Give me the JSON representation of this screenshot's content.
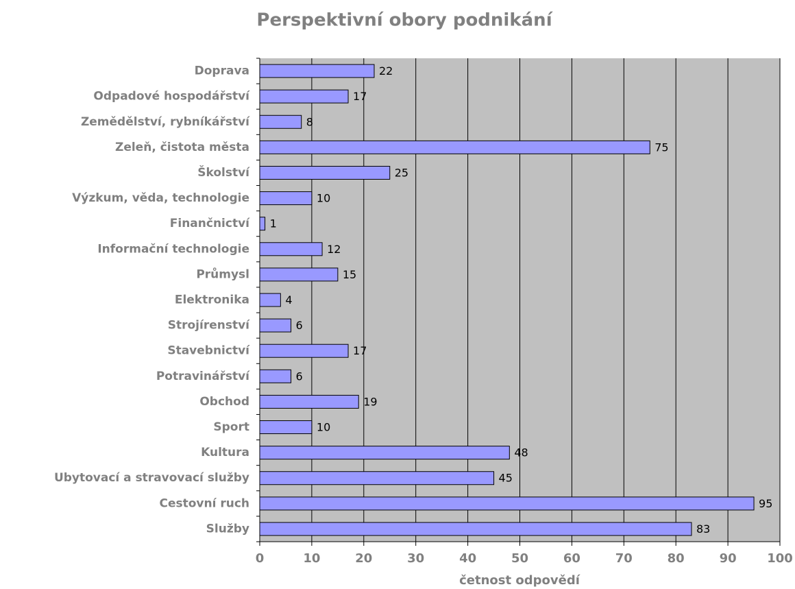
{
  "chart_data": {
    "type": "bar",
    "orientation": "horizontal",
    "title": "Perspektivní obory podnikání",
    "x_label": "četnost odpovědí",
    "categories": [
      "Doprava",
      "Odpadové hospodářství",
      "Zemědělství, rybníkářství",
      "Zeleň, čistota města",
      "Školství",
      "Výzkum, věda, technologie",
      "Finančnictví",
      "Informační technologie",
      "Průmysl",
      "Elektronika",
      "Strojírenství",
      "Stavebnictví",
      "Potravinářství",
      "Obchod",
      "Sport",
      "Kultura",
      "Ubytovací a stravovací služby",
      "Cestovní ruch",
      "Služby"
    ],
    "values": [
      22,
      17,
      8,
      75,
      25,
      10,
      1,
      12,
      15,
      4,
      6,
      17,
      6,
      19,
      10,
      48,
      45,
      95,
      83
    ],
    "color": "#9999ff",
    "background": "#c0c0c0",
    "xlim": [
      0,
      100
    ],
    "xticks": [
      0,
      10,
      20,
      30,
      40,
      50,
      60,
      70,
      80,
      90,
      100
    ],
    "grid": true
  }
}
